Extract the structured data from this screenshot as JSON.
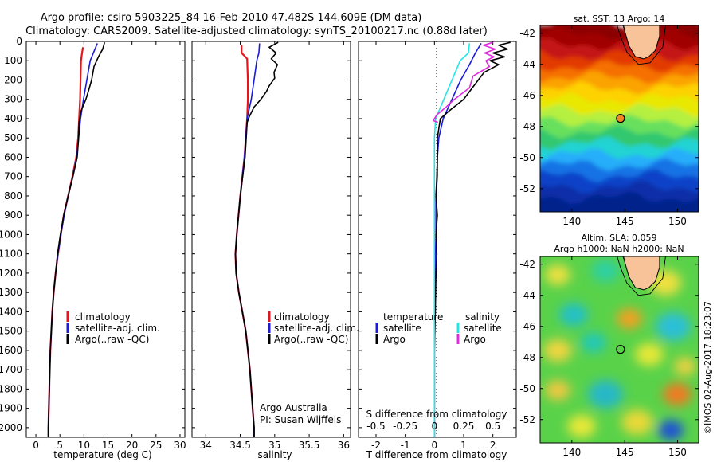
{
  "header": {
    "line1": "Argo profile: csiro 5903225_84 16-Feb-2010 47.482S 144.609E (DM data)",
    "line2": "Climatology: CARS2009. Satellite-adjusted climatology: synTS_20100217.nc (0.88d later)"
  },
  "colors": {
    "climatology": "#e8141b",
    "satellite_adj": "#1a1adb",
    "argo": "#000000",
    "sal_satellite": "#22e5e5",
    "sal_argo": "#e02be0",
    "land": "#f9c39a"
  },
  "chart_data": [
    {
      "type": "line",
      "title": "",
      "xlabel": "temperature (deg C)",
      "ylabel": "",
      "xlim": [
        -2,
        31
      ],
      "ylim": [
        2050,
        0
      ],
      "xticks": [
        0,
        5,
        10,
        15,
        20,
        25,
        30
      ],
      "yticks": [
        0,
        100,
        200,
        300,
        400,
        500,
        600,
        700,
        800,
        900,
        1000,
        1100,
        1200,
        1300,
        1400,
        1500,
        1600,
        1700,
        1800,
        1900,
        2000
      ],
      "legend": [
        "climatology",
        "satellite-adj. clim.",
        "Argo(..raw -QC)"
      ],
      "series": [
        {
          "name": "climatology",
          "points": [
            [
              9.8,
              30
            ],
            [
              9.6,
              60
            ],
            [
              9.4,
              100
            ],
            [
              9.3,
              200
            ],
            [
              9.2,
              300
            ],
            [
              9.0,
              400
            ],
            [
              8.8,
              500
            ],
            [
              8.4,
              600
            ],
            [
              7.6,
              700
            ],
            [
              6.7,
              800
            ],
            [
              5.8,
              900
            ],
            [
              5.2,
              1000
            ],
            [
              4.6,
              1100
            ],
            [
              4.1,
              1200
            ],
            [
              3.7,
              1300
            ],
            [
              3.4,
              1400
            ],
            [
              3.2,
              1500
            ],
            [
              3.0,
              1600
            ],
            [
              2.9,
              1700
            ],
            [
              2.8,
              1800
            ],
            [
              2.7,
              1900
            ],
            [
              2.6,
              2000
            ],
            [
              2.6,
              2050
            ]
          ]
        },
        {
          "name": "satellite-adj. clim.",
          "points": [
            [
              12.8,
              10
            ],
            [
              12.3,
              40
            ],
            [
              11.3,
              100
            ],
            [
              10.6,
              200
            ],
            [
              9.9,
              300
            ],
            [
              9.3,
              400
            ],
            [
              8.9,
              500
            ],
            [
              8.5,
              600
            ],
            [
              7.7,
              700
            ],
            [
              6.7,
              800
            ],
            [
              5.9,
              900
            ],
            [
              5.2,
              1000
            ],
            [
              4.6,
              1100
            ],
            [
              4.1,
              1200
            ],
            [
              3.7,
              1300
            ],
            [
              3.4,
              1400
            ],
            [
              3.2,
              1500
            ],
            [
              3.0,
              1600
            ],
            [
              2.9,
              1700
            ],
            [
              2.8,
              1800
            ],
            [
              2.7,
              1900
            ],
            [
              2.6,
              2000
            ],
            [
              2.6,
              2050
            ]
          ]
        },
        {
          "name": "Argo(..raw -QC)",
          "points": [
            [
              14.3,
              5
            ],
            [
              13.9,
              40
            ],
            [
              13.0,
              80
            ],
            [
              12.1,
              130
            ],
            [
              11.6,
              200
            ],
            [
              10.9,
              260
            ],
            [
              10.4,
              300
            ],
            [
              9.4,
              360
            ],
            [
              9.0,
              420
            ],
            [
              8.9,
              500
            ],
            [
              8.6,
              600
            ],
            [
              7.7,
              700
            ],
            [
              6.7,
              800
            ],
            [
              5.8,
              900
            ],
            [
              5.1,
              1000
            ],
            [
              4.5,
              1100
            ],
            [
              4.1,
              1200
            ],
            [
              3.7,
              1300
            ],
            [
              3.4,
              1400
            ],
            [
              3.2,
              1500
            ],
            [
              3.0,
              1600
            ],
            [
              2.9,
              1700
            ],
            [
              2.8,
              1800
            ],
            [
              2.7,
              1900
            ],
            [
              2.6,
              2000
            ],
            [
              2.6,
              2050
            ]
          ]
        }
      ]
    },
    {
      "type": "line",
      "title": "",
      "xlabel": "salinity",
      "ylabel": "",
      "xlim": [
        33.8,
        36.1
      ],
      "ylim": [
        2050,
        0
      ],
      "xticks": [
        34,
        34.5,
        35,
        35.5,
        36
      ],
      "xtick_labels": [
        "34",
        "34.5",
        "35",
        "35.5",
        "36"
      ],
      "legend": [
        "climatology",
        "satellite-adj. clim.",
        "Argo(..raw -QC)"
      ],
      "annotations": [
        "Argo Australia",
        "PI: Susan Wijffels"
      ],
      "series": [
        {
          "name": "climatology",
          "points": [
            [
              34.52,
              20
            ],
            [
              34.52,
              60
            ],
            [
              34.6,
              90
            ],
            [
              34.61,
              200
            ],
            [
              34.61,
              300
            ],
            [
              34.6,
              400
            ],
            [
              34.56,
              600
            ],
            [
              34.5,
              800
            ],
            [
              34.45,
              1000
            ],
            [
              34.43,
              1100
            ],
            [
              34.44,
              1200
            ],
            [
              34.48,
              1300
            ],
            [
              34.53,
              1400
            ],
            [
              34.58,
              1500
            ],
            [
              34.61,
              1600
            ],
            [
              34.64,
              1700
            ],
            [
              34.66,
              1800
            ],
            [
              34.68,
              1900
            ],
            [
              34.7,
              2000
            ],
            [
              34.7,
              2050
            ]
          ]
        },
        {
          "name": "satellite-adj. clim.",
          "points": [
            [
              34.78,
              10
            ],
            [
              34.77,
              60
            ],
            [
              34.74,
              100
            ],
            [
              34.7,
              200
            ],
            [
              34.66,
              300
            ],
            [
              34.6,
              400
            ],
            [
              34.56,
              600
            ],
            [
              34.5,
              800
            ],
            [
              34.45,
              1000
            ],
            [
              34.43,
              1100
            ],
            [
              34.44,
              1200
            ],
            [
              34.48,
              1300
            ],
            [
              34.53,
              1400
            ],
            [
              34.58,
              1500
            ],
            [
              34.61,
              1600
            ],
            [
              34.64,
              1700
            ],
            [
              34.66,
              1800
            ],
            [
              34.68,
              1900
            ],
            [
              34.7,
              2000
            ],
            [
              34.7,
              2050
            ]
          ]
        },
        {
          "name": "Argo(..raw -QC)",
          "points": [
            [
              35.05,
              5
            ],
            [
              34.92,
              30
            ],
            [
              35.02,
              60
            ],
            [
              34.95,
              90
            ],
            [
              35.04,
              120
            ],
            [
              34.99,
              160
            ],
            [
              35.0,
              190
            ],
            [
              34.92,
              230
            ],
            [
              34.88,
              260
            ],
            [
              34.8,
              300
            ],
            [
              34.7,
              340
            ],
            [
              34.63,
              390
            ],
            [
              34.6,
              420
            ],
            [
              34.57,
              600
            ],
            [
              34.5,
              800
            ],
            [
              34.45,
              1000
            ],
            [
              34.43,
              1100
            ],
            [
              34.44,
              1200
            ],
            [
              34.48,
              1300
            ],
            [
              34.53,
              1400
            ],
            [
              34.58,
              1500
            ],
            [
              34.61,
              1600
            ],
            [
              34.64,
              1700
            ],
            [
              34.66,
              1800
            ],
            [
              34.68,
              1900
            ],
            [
              34.7,
              2000
            ],
            [
              34.7,
              2050
            ]
          ]
        }
      ]
    },
    {
      "type": "line",
      "title": "",
      "xlabel": "T difference from climatology",
      "xlabel2": "S difference from climatology",
      "xlim": [
        -2.6,
        2.8
      ],
      "ylim": [
        2050,
        0
      ],
      "xticks": [
        -2,
        -1,
        0,
        1,
        2
      ],
      "s_ticks": [
        -0.5,
        -0.25,
        0,
        0.25,
        0.5
      ],
      "s_tick_labels": [
        "-0.5",
        "-0.25",
        "0",
        "0.25",
        "0.5"
      ],
      "legend_headers": [
        "temperature",
        "salinity"
      ],
      "legend": [
        "satellite",
        "Argo",
        "satellite",
        "Argo"
      ],
      "series": [
        {
          "name": "satellite",
          "group": "temperature",
          "points": [
            [
              1.6,
              10
            ],
            [
              1.4,
              60
            ],
            [
              1.2,
              120
            ],
            [
              0.9,
              200
            ],
            [
              0.6,
              300
            ],
            [
              0.3,
              400
            ],
            [
              0.15,
              500
            ],
            [
              0.1,
              600
            ],
            [
              0.1,
              700
            ],
            [
              0.05,
              800
            ],
            [
              0.05,
              1000
            ],
            [
              0.02,
              1200
            ],
            [
              0.0,
              1500
            ],
            [
              0.0,
              2050
            ]
          ]
        },
        {
          "name": "Argo",
          "group": "temperature",
          "points": [
            [
              2.6,
              5
            ],
            [
              2.2,
              20
            ],
            [
              2.5,
              40
            ],
            [
              2.0,
              60
            ],
            [
              2.4,
              80
            ],
            [
              1.9,
              100
            ],
            [
              2.2,
              120
            ],
            [
              1.7,
              160
            ],
            [
              1.5,
              200
            ],
            [
              1.2,
              260
            ],
            [
              1.0,
              300
            ],
            [
              0.5,
              360
            ],
            [
              0.2,
              400
            ],
            [
              0.1,
              500
            ],
            [
              0.1,
              600
            ],
            [
              0.08,
              700
            ],
            [
              0.05,
              800
            ],
            [
              0.1,
              900
            ],
            [
              0.05,
              1000
            ],
            [
              0.08,
              1100
            ],
            [
              0.05,
              1200
            ],
            [
              0.03,
              1400
            ],
            [
              0.0,
              1600
            ],
            [
              0.0,
              2050
            ]
          ]
        },
        {
          "name": "satellite",
          "group": "salinity",
          "points": [
            [
              0.3,
              10
            ],
            [
              0.29,
              60
            ],
            [
              0.22,
              100
            ],
            [
              0.15,
              200
            ],
            [
              0.08,
              300
            ],
            [
              0.01,
              400
            ],
            [
              0.0,
              500
            ],
            [
              0.0,
              2050
            ]
          ]
        },
        {
          "name": "Argo",
          "group": "salinity",
          "points": [
            [
              0.5,
              5
            ],
            [
              0.42,
              20
            ],
            [
              0.52,
              40
            ],
            [
              0.43,
              60
            ],
            [
              0.51,
              80
            ],
            [
              0.44,
              100
            ],
            [
              0.47,
              130
            ],
            [
              0.33,
              180
            ],
            [
              0.3,
              240
            ],
            [
              0.17,
              300
            ],
            [
              0.1,
              340
            ],
            [
              0.02,
              380
            ],
            [
              -0.01,
              410
            ],
            [
              0.03,
              420
            ]
          ]
        }
      ]
    }
  ],
  "maps": [
    {
      "title": "sat. SST: 13 Argo: 14",
      "xlim": [
        137,
        152
      ],
      "ylim": [
        -53.5,
        -41.5
      ],
      "xticks": [
        140,
        145,
        150
      ],
      "yticks": [
        -42,
        -44,
        -46,
        -48,
        -50,
        -52
      ],
      "marker": {
        "lon": 144.6,
        "lat": -47.48
      },
      "colorbands": [
        "#8b0000",
        "#a00000",
        "#c41313",
        "#e23a00",
        "#f56f00",
        "#fba300",
        "#fdd200",
        "#e8e800",
        "#b5f03f",
        "#68e05d",
        "#30c870",
        "#22d3d3",
        "#28aefa",
        "#1573e5",
        "#0a43c8",
        "#072fa8",
        "#06228a"
      ]
    },
    {
      "title": "Altim. SLA: 0.059",
      "subtitle": "Argo h1000: NaN h2000: NaN",
      "xlim": [
        137,
        152
      ],
      "ylim": [
        -53.5,
        -41.5
      ],
      "xticks": [
        140,
        145,
        150
      ],
      "yticks": [
        -42,
        -44,
        -46,
        -48,
        -50,
        -52
      ],
      "marker": {
        "lon": 144.6,
        "lat": -47.48
      }
    }
  ],
  "stamp": "©IMOS 02-Aug-2017 18:23:07"
}
